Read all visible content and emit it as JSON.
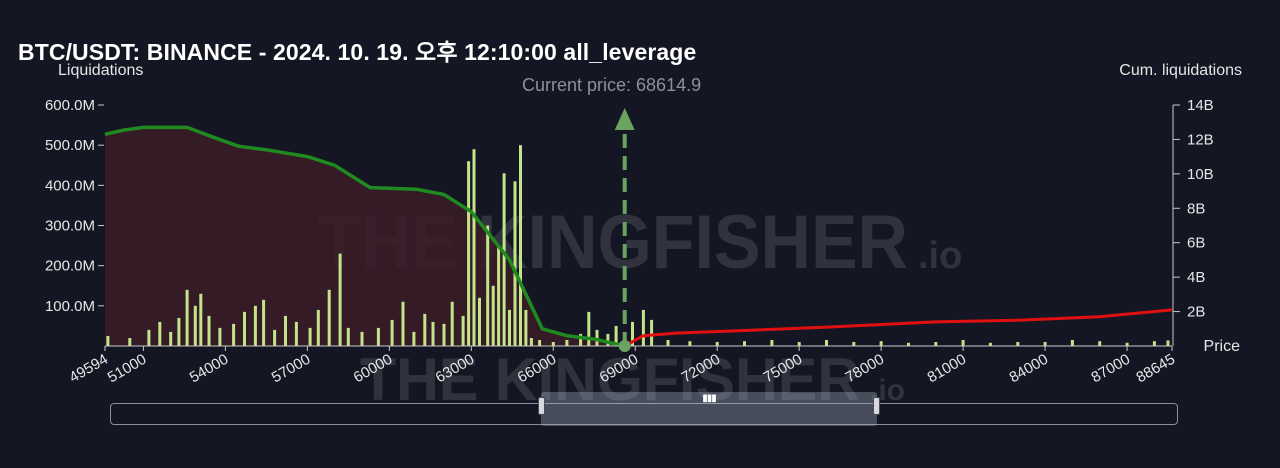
{
  "title": "BTC/USDT: BINANCE - 2024. 10. 19. 오후 12:10:00 all_leverage",
  "y_left_title": "Liquidations",
  "y_right_title": "Cum. liquidations",
  "x_title": "Price",
  "current_price_label": "Current price: 68614.9",
  "watermark_text": "THE KINGFISHER",
  "watermark_suffix": ".io",
  "colors": {
    "background": "#141723",
    "bars": "#c4e48a",
    "cum_long": "#1f8a1f",
    "cum_short": "#e01010",
    "long_fill": "#3a1c27",
    "arrow": "#6aa35f"
  },
  "chart_data": {
    "type": "bar",
    "title": "BTC/USDT: BINANCE - 2024. 10. 19. 오후 12:10:00 all_leverage",
    "xlabel": "Price",
    "ylabel": "Liquidations",
    "y2label": "Cum. liquidations",
    "xlim": [
      49594,
      88645
    ],
    "ylim": [
      0,
      600000000
    ],
    "y2lim": [
      0,
      14000000000
    ],
    "x_ticks": [
      "49594",
      "51000",
      "54000",
      "57000",
      "60000",
      "63000",
      "66000",
      "69000",
      "72000",
      "75000",
      "78000",
      "81000",
      "84000",
      "87000",
      "88645"
    ],
    "y_ticks": [
      "600.0M",
      "500.0M",
      "400.0M",
      "300.0M",
      "200.0M",
      "100.0M"
    ],
    "y2_ticks": [
      "14B",
      "12B",
      "10B",
      "8B",
      "6B",
      "4B",
      "2B"
    ],
    "current_price": 68614.9,
    "bars": [
      [
        49700,
        25
      ],
      [
        50500,
        20
      ],
      [
        51200,
        40
      ],
      [
        51600,
        60
      ],
      [
        52000,
        35
      ],
      [
        52300,
        70
      ],
      [
        52600,
        140
      ],
      [
        52900,
        100
      ],
      [
        53100,
        130
      ],
      [
        53400,
        75
      ],
      [
        53800,
        45
      ],
      [
        54300,
        55
      ],
      [
        54700,
        85
      ],
      [
        55100,
        100
      ],
      [
        55400,
        115
      ],
      [
        55800,
        40
      ],
      [
        56200,
        75
      ],
      [
        56600,
        60
      ],
      [
        57100,
        45
      ],
      [
        57400,
        90
      ],
      [
        57800,
        140
      ],
      [
        58200,
        230
      ],
      [
        58500,
        45
      ],
      [
        59000,
        35
      ],
      [
        59600,
        45
      ],
      [
        60100,
        65
      ],
      [
        60500,
        110
      ],
      [
        60900,
        35
      ],
      [
        61300,
        80
      ],
      [
        61600,
        60
      ],
      [
        62000,
        55
      ],
      [
        62300,
        110
      ],
      [
        62700,
        75
      ],
      [
        62900,
        460
      ],
      [
        63100,
        490
      ],
      [
        63300,
        120
      ],
      [
        63600,
        300
      ],
      [
        63800,
        150
      ],
      [
        64000,
        250
      ],
      [
        64200,
        430
      ],
      [
        64400,
        90
      ],
      [
        64600,
        410
      ],
      [
        64800,
        500
      ],
      [
        65000,
        90
      ],
      [
        65200,
        20
      ],
      [
        65500,
        15
      ],
      [
        66000,
        10
      ],
      [
        66500,
        15
      ],
      [
        67000,
        30
      ],
      [
        67300,
        85
      ],
      [
        67600,
        40
      ],
      [
        68000,
        30
      ],
      [
        68300,
        50
      ],
      [
        68900,
        60
      ],
      [
        69300,
        90
      ],
      [
        69600,
        65
      ],
      [
        70200,
        15
      ],
      [
        71000,
        12
      ],
      [
        72000,
        10
      ],
      [
        73000,
        12
      ],
      [
        74000,
        15
      ],
      [
        75000,
        10
      ],
      [
        76000,
        15
      ],
      [
        77000,
        10
      ],
      [
        78000,
        12
      ],
      [
        79000,
        8
      ],
      [
        80000,
        10
      ],
      [
        81000,
        15
      ],
      [
        82000,
        8
      ],
      [
        83000,
        10
      ],
      [
        84000,
        10
      ],
      [
        85000,
        15
      ],
      [
        86000,
        12
      ],
      [
        87000,
        8
      ],
      [
        88000,
        12
      ],
      [
        88500,
        14
      ]
    ],
    "cum_long": [
      [
        49594,
        12.3
      ],
      [
        50300,
        12.55
      ],
      [
        51000,
        12.7
      ],
      [
        52600,
        12.7
      ],
      [
        53600,
        12.1
      ],
      [
        54500,
        11.6
      ],
      [
        55500,
        11.4
      ],
      [
        57000,
        11.0
      ],
      [
        58000,
        10.5
      ],
      [
        59300,
        9.2
      ],
      [
        61000,
        9.1
      ],
      [
        62000,
        8.8
      ],
      [
        63000,
        7.8
      ],
      [
        63600,
        6.6
      ],
      [
        64400,
        5.0
      ],
      [
        65000,
        3.0
      ],
      [
        65600,
        1.0
      ],
      [
        66500,
        0.6
      ],
      [
        67500,
        0.4
      ],
      [
        68614.9,
        0.0
      ]
    ],
    "cum_short": [
      [
        68614.9,
        0.0
      ],
      [
        69300,
        0.6
      ],
      [
        70500,
        0.75
      ],
      [
        73000,
        0.9
      ],
      [
        76000,
        1.1
      ],
      [
        80000,
        1.4
      ],
      [
        83000,
        1.5
      ],
      [
        86000,
        1.7
      ],
      [
        88645,
        2.1
      ]
    ]
  }
}
